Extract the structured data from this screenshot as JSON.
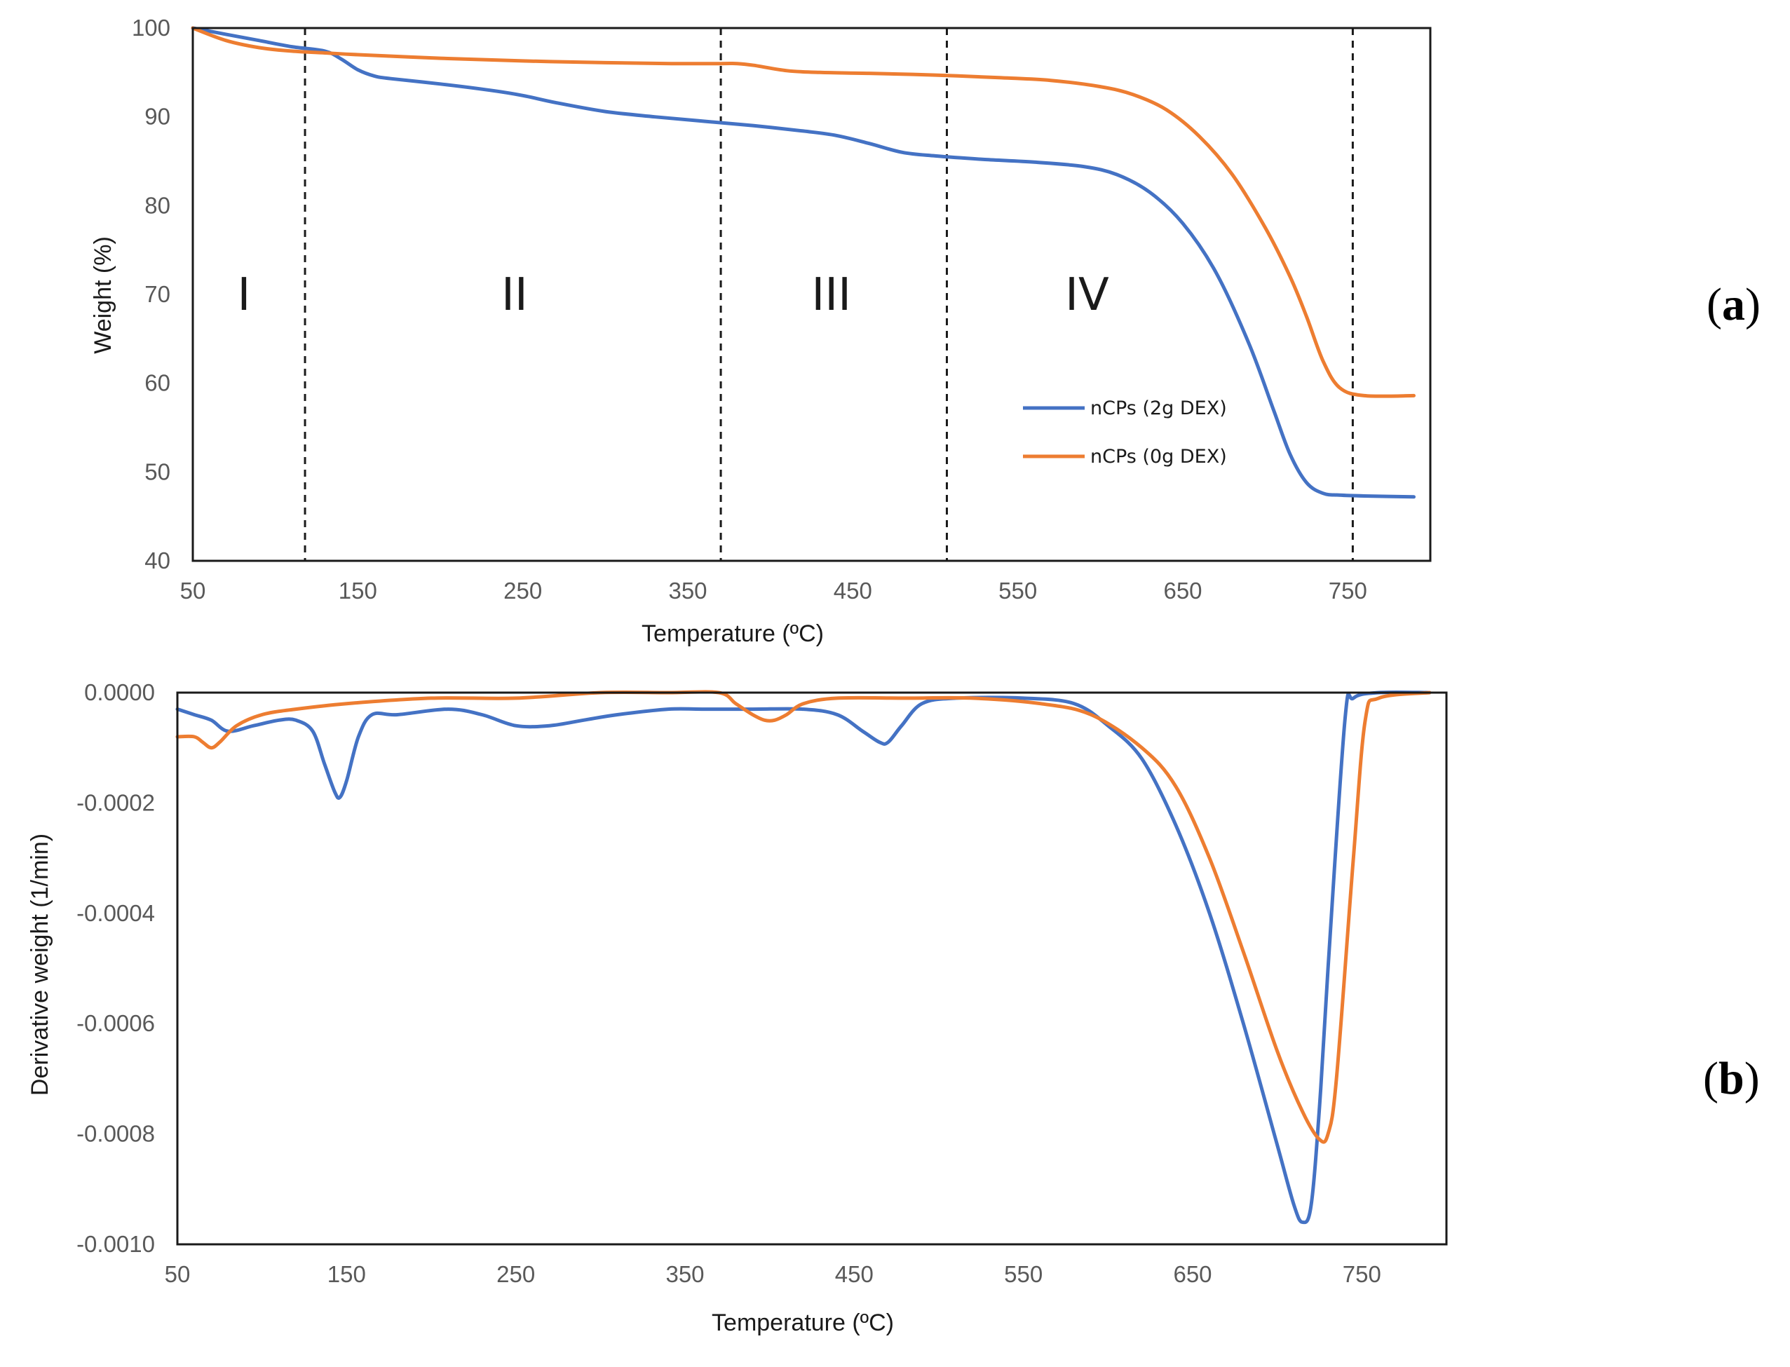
{
  "chart_data": [
    {
      "type": "line",
      "panel_label": "a",
      "xlabel": "Temperature (ºC)",
      "ylabel": "Weight (%)",
      "xlim": [
        50,
        800
      ],
      "ylim": [
        40,
        100
      ],
      "xticks": [
        50,
        150,
        250,
        350,
        450,
        550,
        650,
        750
      ],
      "yticks": [
        40,
        50,
        60,
        70,
        80,
        90,
        100
      ],
      "vlines": [
        118,
        370,
        507,
        753
      ],
      "regions": [
        {
          "label": "I",
          "x": 81,
          "y": 70
        },
        {
          "label": "II",
          "x": 245,
          "y": 70
        },
        {
          "label": "III",
          "x": 437,
          "y": 70
        },
        {
          "label": "IV",
          "x": 592,
          "y": 70
        }
      ],
      "legend": "lower-right",
      "series": [
        {
          "name": "nCPs (2g DEX)",
          "color": "#4472C4",
          "x": [
            50,
            70,
            90,
            110,
            130,
            140,
            150,
            160,
            170,
            200,
            230,
            250,
            270,
            300,
            330,
            360,
            390,
            420,
            440,
            460,
            480,
            500,
            530,
            560,
            590,
            610,
            630,
            650,
            670,
            690,
            705,
            715,
            725,
            735,
            745,
            760,
            790
          ],
          "y": [
            100,
            99.3,
            98.6,
            97.9,
            97.4,
            96.5,
            95.3,
            94.6,
            94.3,
            93.7,
            93.0,
            92.4,
            91.6,
            90.6,
            90.0,
            89.5,
            89.0,
            88.4,
            87.9,
            87.0,
            86.0,
            85.6,
            85.2,
            84.9,
            84.4,
            83.5,
            81.5,
            78.0,
            72.5,
            64.5,
            57.0,
            52.0,
            48.8,
            47.6,
            47.4,
            47.3,
            47.2
          ]
        },
        {
          "name": "nCPs (0g DEX)",
          "color": "#ED7D31",
          "x": [
            50,
            70,
            90,
            110,
            130,
            150,
            200,
            250,
            300,
            340,
            370,
            380,
            390,
            410,
            430,
            460,
            500,
            540,
            570,
            600,
            620,
            640,
            660,
            680,
            700,
            715,
            725,
            735,
            745,
            760,
            790
          ],
          "y": [
            100,
            98.6,
            97.8,
            97.4,
            97.2,
            97.0,
            96.6,
            96.3,
            96.1,
            96.0,
            96.0,
            96.0,
            95.8,
            95.2,
            95.0,
            94.9,
            94.7,
            94.4,
            94.1,
            93.4,
            92.5,
            90.8,
            87.8,
            83.5,
            77.5,
            72.0,
            67.5,
            62.5,
            59.5,
            58.6,
            58.6
          ]
        }
      ]
    },
    {
      "type": "line",
      "panel_label": "b",
      "xlabel": "Temperature (ºC)",
      "ylabel": "Derivative weight (1/min)",
      "xlim": [
        50,
        800
      ],
      "ylim": [
        -0.001,
        0
      ],
      "xticks": [
        50,
        150,
        250,
        350,
        450,
        550,
        650,
        750
      ],
      "yticks": [
        "0.0000",
        "-0.0002",
        "-0.0004",
        "-0.0006",
        "-0.0008",
        "-0.0010"
      ],
      "series": [
        {
          "name": "nCPs (2g DEX)",
          "color": "#4472C4",
          "x": [
            50,
            60,
            70,
            80,
            95,
            110,
            120,
            130,
            137,
            143,
            146,
            150,
            157,
            165,
            180,
            210,
            230,
            250,
            270,
            290,
            310,
            340,
            360,
            390,
            420,
            440,
            455,
            465,
            470,
            478,
            490,
            510,
            550,
            580,
            600,
            620,
            640,
            660,
            680,
            700,
            710,
            715,
            720,
            725,
            730,
            740,
            745,
            760,
            790
          ],
          "y": [
            -3e-05,
            -4e-05,
            -5e-05,
            -7e-05,
            -6e-05,
            -5e-05,
            -5e-05,
            -7e-05,
            -0.00013,
            -0.00018,
            -0.00019,
            -0.00016,
            -8e-05,
            -4e-05,
            -4e-05,
            -3e-05,
            -4e-05,
            -6e-05,
            -6e-05,
            -5e-05,
            -4e-05,
            -3e-05,
            -3e-05,
            -3e-05,
            -3e-05,
            -4e-05,
            -7e-05,
            -9e-05,
            -9e-05,
            -6e-05,
            -2e-05,
            -1e-05,
            -1e-05,
            -2e-05,
            -6e-05,
            -0.00012,
            -0.00024,
            -0.0004,
            -0.0006,
            -0.00082,
            -0.00093,
            -0.00096,
            -0.00093,
            -0.00075,
            -0.0005,
            -5e-05,
            -1e-05,
            0.0,
            0.0
          ]
        },
        {
          "name": "nCPs (0g DEX)",
          "color": "#ED7D31",
          "x": [
            50,
            60,
            65,
            70,
            75,
            85,
            100,
            120,
            150,
            200,
            250,
            300,
            340,
            370,
            380,
            390,
            397,
            403,
            410,
            420,
            440,
            480,
            520,
            560,
            590,
            620,
            640,
            660,
            680,
            700,
            715,
            725,
            730,
            735,
            745,
            752,
            760,
            790
          ],
          "y": [
            -8e-05,
            -8e-05,
            -9e-05,
            -0.0001,
            -9e-05,
            -6e-05,
            -4e-05,
            -3e-05,
            -2e-05,
            -1e-05,
            -1e-05,
            0.0,
            0.0,
            0.0,
            -2e-05,
            -4e-05,
            -5e-05,
            -5e-05,
            -4e-05,
            -2e-05,
            -1e-05,
            -1e-05,
            -1e-05,
            -2e-05,
            -4e-05,
            -0.0001,
            -0.00017,
            -0.0003,
            -0.00047,
            -0.00065,
            -0.00076,
            -0.00081,
            -0.0008,
            -0.0007,
            -0.0003,
            -5e-05,
            -1e-05,
            0.0
          ]
        }
      ]
    }
  ]
}
